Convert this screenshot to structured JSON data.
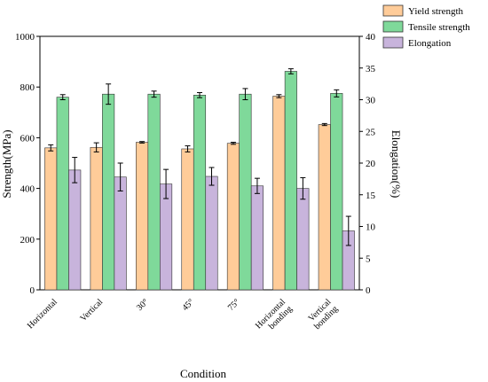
{
  "chart_data": {
    "type": "bar",
    "title": "",
    "xlabel": "Condition",
    "ylabel_left": "Strength(MPa)",
    "ylabel_right": "Elongation(%)",
    "ylim_left": [
      0,
      1000
    ],
    "yticks_left": [
      "0",
      "200",
      "400",
      "600",
      "800",
      "1000"
    ],
    "ylim_right": [
      0,
      40
    ],
    "yticks_right": [
      "0",
      "5",
      "10",
      "15",
      "20",
      "25",
      "30",
      "35",
      "40"
    ],
    "grid": false,
    "legend_position": "top-right",
    "categories": [
      [
        "Horizontal"
      ],
      [
        "Vertical"
      ],
      [
        "30°"
      ],
      [
        "45°"
      ],
      [
        "75°"
      ],
      [
        "Horizontal",
        "bonding"
      ],
      [
        "Vertical",
        "bonding"
      ]
    ],
    "series": [
      {
        "name": "Yield strength",
        "axis": "left",
        "color": "#FFCC99",
        "values": [
          560,
          562,
          582,
          556,
          578,
          764,
          652
        ],
        "errors": [
          12,
          18,
          3,
          12,
          4,
          6,
          4
        ]
      },
      {
        "name": "Tensile strength",
        "axis": "left",
        "color": "#7FD99A",
        "values": [
          760,
          772,
          772,
          768,
          772,
          862,
          775
        ],
        "errors": [
          10,
          40,
          12,
          10,
          22,
          10,
          14
        ]
      },
      {
        "name": "Elongation",
        "axis": "right",
        "color": "#C8B4DC",
        "values": [
          18.9,
          17.8,
          16.7,
          17.9,
          16.4,
          16.0,
          9.3
        ],
        "errors": [
          2.0,
          2.2,
          2.3,
          1.4,
          1.2,
          1.7,
          2.3
        ]
      }
    ]
  }
}
